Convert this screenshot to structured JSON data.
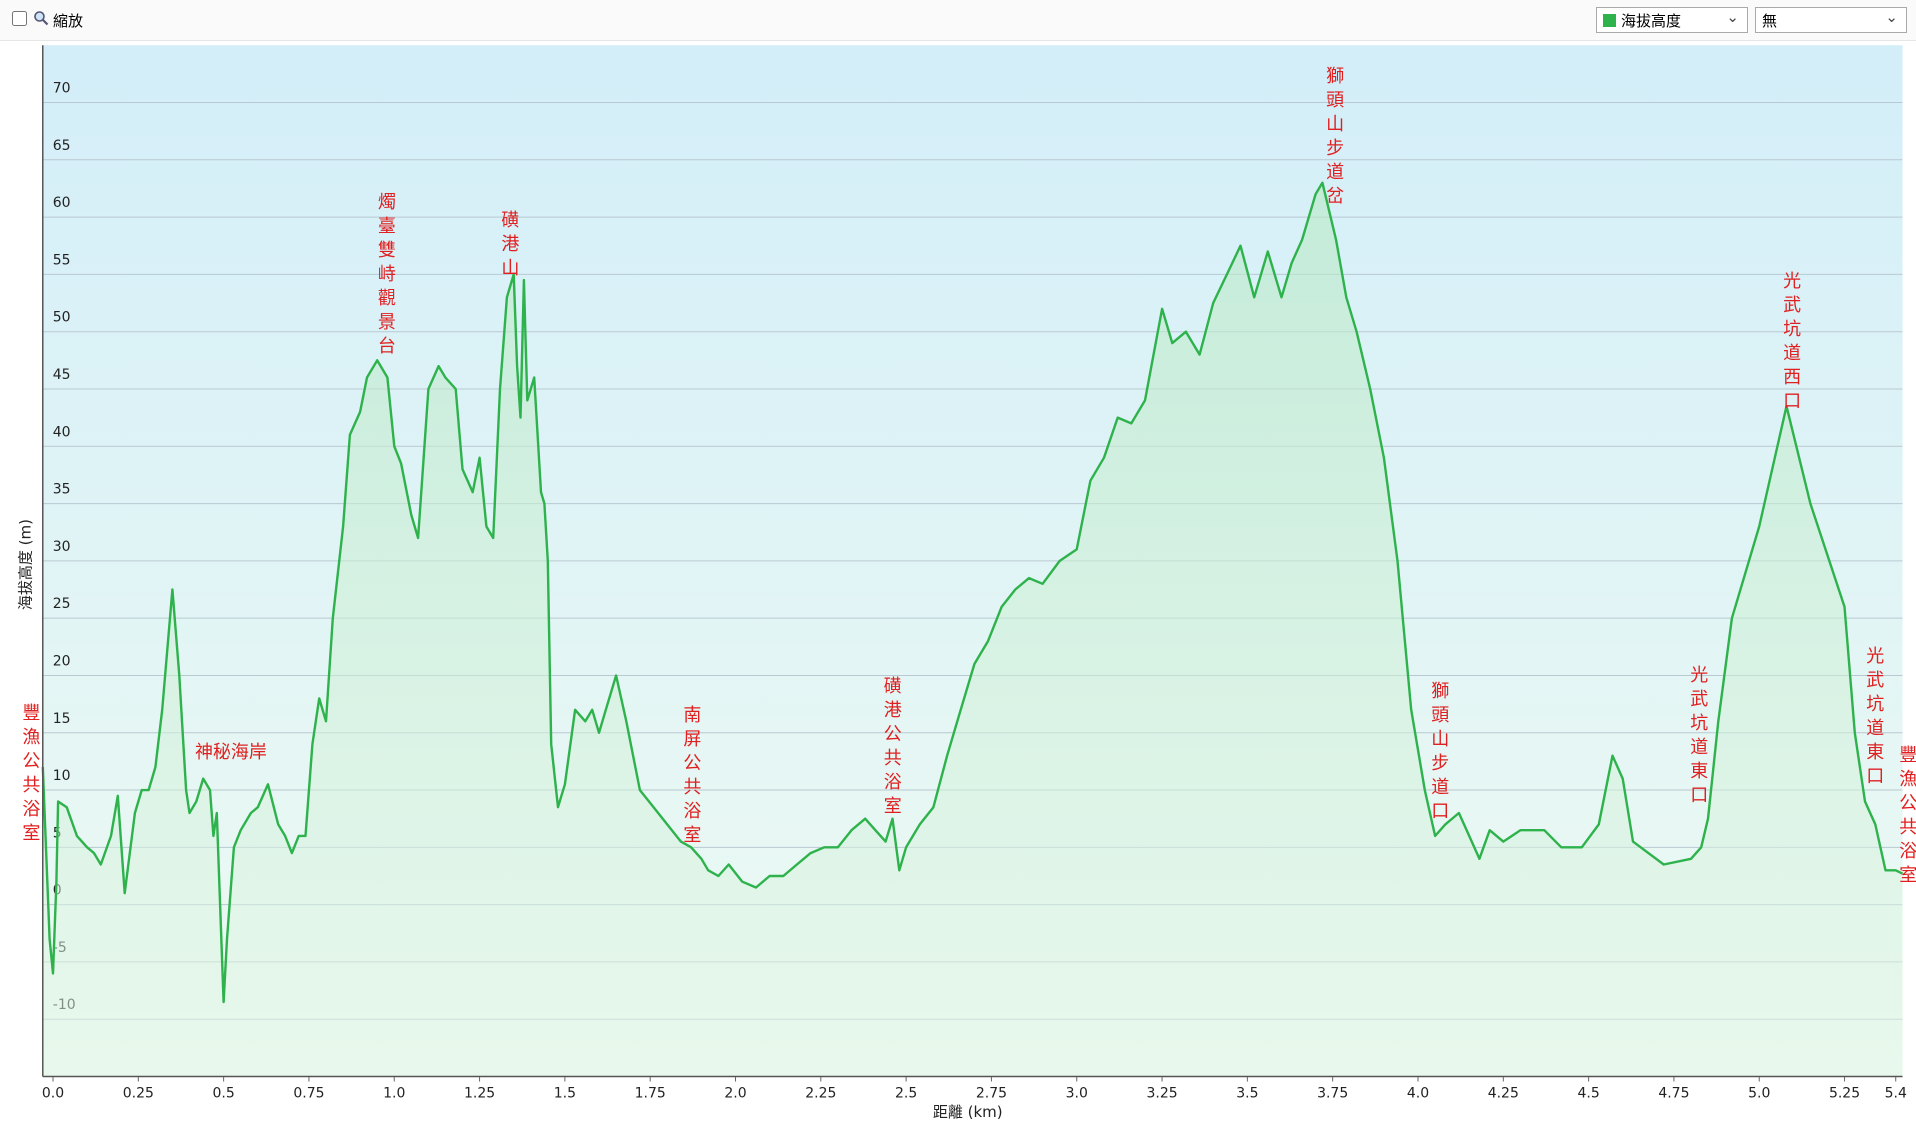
{
  "toolbar": {
    "zoom_label": "縮放",
    "series_select": "海拔高度",
    "second_select": "無"
  },
  "chart_data": {
    "type": "line",
    "x_label": "距離 (km)",
    "y_label": "海拔高度 (m)",
    "xlim": [
      -0.03,
      5.42
    ],
    "ylim": [
      -15,
      75
    ],
    "xticks": [
      {
        "value": 0,
        "label": "0.0"
      },
      0.25,
      0.5,
      0.75,
      {
        "value": 1,
        "label": "1.0"
      },
      1.25,
      1.5,
      1.75,
      {
        "value": 2,
        "label": "2.0"
      },
      2.25,
      2.5,
      2.75,
      {
        "value": 3,
        "label": "3.0"
      },
      3.25,
      3.5,
      3.75,
      {
        "value": 4,
        "label": "4.0"
      },
      4.25,
      4.5,
      4.75,
      {
        "value": 5,
        "label": "5.0"
      },
      5.25,
      5.4
    ],
    "yticks": [
      -10,
      -5,
      0,
      5,
      10,
      15,
      20,
      25,
      30,
      35,
      40,
      45,
      50,
      55,
      60,
      65,
      70
    ],
    "grid": true,
    "series": [
      {
        "name": "海拔高度",
        "color": "#2eb24c",
        "x": [
          -0.03,
          -0.01,
          0.0,
          0.01,
          0.015,
          0.04,
          0.07,
          0.1,
          0.12,
          0.14,
          0.17,
          0.19,
          0.21,
          0.24,
          0.26,
          0.28,
          0.3,
          0.32,
          0.34,
          0.35,
          0.37,
          0.39,
          0.4,
          0.42,
          0.44,
          0.46,
          0.47,
          0.48,
          0.5,
          0.51,
          0.53,
          0.55,
          0.58,
          0.6,
          0.63,
          0.66,
          0.68,
          0.7,
          0.72,
          0.74,
          0.76,
          0.78,
          0.8,
          0.82,
          0.85,
          0.87,
          0.9,
          0.92,
          0.95,
          0.98,
          1.0,
          1.02,
          1.05,
          1.07,
          1.1,
          1.13,
          1.15,
          1.18,
          1.2,
          1.23,
          1.25,
          1.27,
          1.29,
          1.31,
          1.33,
          1.35,
          1.36,
          1.37,
          1.38,
          1.39,
          1.41,
          1.43,
          1.44,
          1.45,
          1.46,
          1.48,
          1.5,
          1.53,
          1.56,
          1.58,
          1.6,
          1.62,
          1.65,
          1.68,
          1.72,
          1.76,
          1.8,
          1.84,
          1.87,
          1.9,
          1.92,
          1.95,
          1.98,
          2.02,
          2.06,
          2.1,
          2.14,
          2.18,
          2.22,
          2.26,
          2.3,
          2.34,
          2.38,
          2.41,
          2.44,
          2.46,
          2.48,
          2.5,
          2.54,
          2.58,
          2.62,
          2.66,
          2.7,
          2.74,
          2.78,
          2.82,
          2.86,
          2.9,
          2.95,
          3.0,
          3.04,
          3.08,
          3.12,
          3.16,
          3.2,
          3.25,
          3.28,
          3.32,
          3.36,
          3.4,
          3.44,
          3.48,
          3.52,
          3.56,
          3.6,
          3.63,
          3.66,
          3.7,
          3.72,
          3.76,
          3.79,
          3.82,
          3.86,
          3.9,
          3.94,
          3.98,
          4.02,
          4.05,
          4.08,
          4.12,
          4.15,
          4.18,
          4.21,
          4.25,
          4.3,
          4.37,
          4.42,
          4.48,
          4.53,
          4.57,
          4.6,
          4.63,
          4.72,
          4.8,
          4.83,
          4.85,
          4.88,
          4.92,
          5.0,
          5.08,
          5.15,
          5.25,
          5.28,
          5.31,
          5.34,
          5.37,
          5.4,
          5.42
        ],
        "values": [
          12,
          -3,
          -6,
          2,
          9,
          8.5,
          6,
          5,
          4.5,
          3.5,
          6,
          9.5,
          1,
          8,
          10,
          10,
          12,
          17,
          24,
          27.5,
          20,
          10,
          8,
          9,
          11,
          10,
          6,
          8,
          -8.5,
          -3,
          5,
          6.5,
          8,
          8.5,
          10.5,
          7,
          6,
          4.5,
          6,
          6,
          14,
          18,
          16,
          25,
          33,
          41,
          43,
          46,
          47.5,
          46,
          40,
          38.5,
          34,
          32,
          45,
          47,
          46,
          45,
          38,
          36,
          39,
          33,
          32,
          45,
          53,
          55,
          47,
          42.5,
          54.5,
          44,
          46,
          36,
          35,
          30,
          14,
          8.5,
          10.5,
          17,
          16,
          17,
          15,
          17,
          20,
          16,
          10,
          8.5,
          7,
          5.5,
          5,
          4,
          3,
          2.5,
          3.5,
          2,
          1.5,
          2.5,
          2.5,
          3.5,
          4.5,
          5,
          5,
          6.5,
          7.5,
          6.5,
          5.5,
          7.5,
          3,
          5,
          7,
          8.5,
          13,
          17,
          21,
          23,
          26,
          27.5,
          28.5,
          28,
          30,
          31,
          37,
          39,
          42.5,
          42,
          44,
          52,
          49,
          50,
          48,
          52.5,
          55,
          57.5,
          53,
          57,
          53,
          56,
          58,
          62,
          63,
          58,
          53,
          50,
          45,
          39,
          30,
          17,
          10,
          6,
          7,
          8,
          6,
          4,
          6.5,
          5.5,
          6.5,
          6.5,
          5,
          5,
          7,
          13,
          11,
          5.5,
          3.5,
          4,
          5,
          7.5,
          16,
          25,
          33,
          43.5,
          35,
          26,
          15,
          9,
          7,
          3,
          3,
          2.7
        ]
      }
    ],
    "annotations": [
      "豐漁公共浴室",
      "神秘海岸",
      "燭臺雙峙觀景台",
      "磺港山",
      "南屏公共浴室",
      "磺港公共浴室",
      "獅頭山步道岔",
      "獅頭山步道口",
      "光武坑道東口",
      "光武坑道西口",
      "光武坑道東口",
      "豐漁公共浴室"
    ]
  }
}
